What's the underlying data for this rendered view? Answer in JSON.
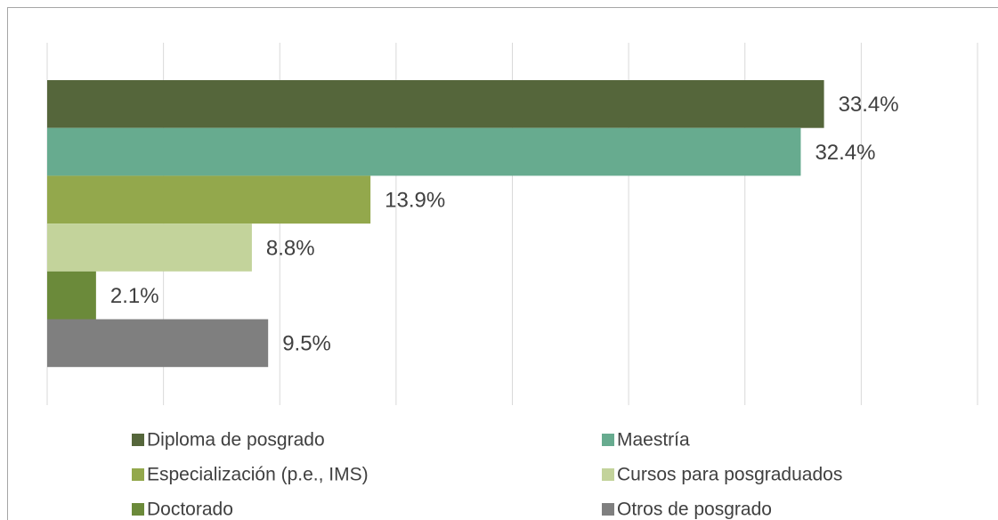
{
  "chart_data": {
    "type": "bar",
    "orientation": "horizontal",
    "xlim": [
      0,
      40
    ],
    "xticks": [
      0,
      5,
      10,
      15,
      20,
      25,
      30,
      35,
      40
    ],
    "grid": true,
    "legend": "bottom",
    "series": [
      {
        "name": "Diploma de posgrado",
        "color": "#55663b",
        "values": [
          33.4
        ],
        "value_labels": [
          "33.4%"
        ]
      },
      {
        "name": "Maestría",
        "color": "#67ab8f",
        "values": [
          32.4
        ],
        "value_labels": [
          "32.4%"
        ]
      },
      {
        "name": "Especialización (p.e., IMS)",
        "color": "#93a84c",
        "values": [
          13.9
        ],
        "value_labels": [
          "13.9%"
        ]
      },
      {
        "name": "Cursos para posgraduados",
        "color": "#c3d39b",
        "values": [
          8.8
        ],
        "value_labels": [
          "8.8%"
        ]
      },
      {
        "name": "Doctorado",
        "color": "#6b8a3a",
        "values": [
          2.1
        ],
        "value_labels": [
          "2.1%"
        ]
      },
      {
        "name": "Otros de posgrado",
        "color": "#7f7f7f",
        "values": [
          9.5
        ],
        "value_labels": [
          "9.5%"
        ]
      }
    ]
  }
}
